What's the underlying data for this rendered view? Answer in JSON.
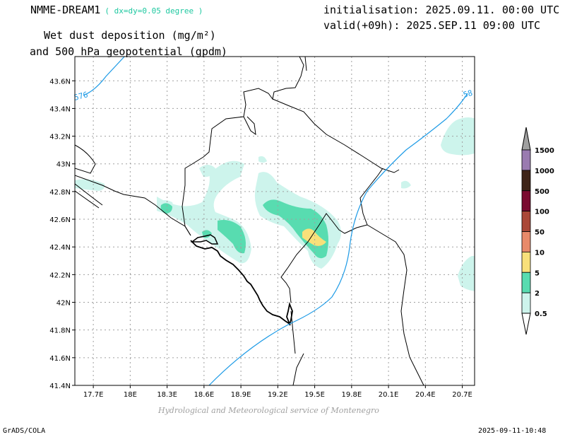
{
  "header": {
    "model": "NMME-DREAM1",
    "resolution": "( dx=dy=0.05 degree )",
    "initialisation": "initialisation: 2025.09.11. 00:00 UTC",
    "valid": "valid(+09h): 2025.SEP.11 09:00 UTC",
    "variable_line1": "Wet dust deposition (mg/m²)",
    "variable_line2": "and 500 hPa geopotential (gpdm)"
  },
  "map": {
    "lat_labels": [
      "43.6N",
      "43.4N",
      "43.2N",
      "43N",
      "42.8N",
      "42.6N",
      "42.4N",
      "42.2N",
      "42N",
      "41.8N",
      "41.6N",
      "41.4N"
    ],
    "lat_values": [
      43.6,
      43.4,
      43.2,
      43.0,
      42.8,
      42.6,
      42.4,
      42.2,
      42.0,
      41.8,
      41.6,
      41.4
    ],
    "lon_labels": [
      "17.7E",
      "18E",
      "18.3E",
      "18.6E",
      "18.9E",
      "19.2E",
      "19.5E",
      "19.8E",
      "20.1E",
      "20.4E",
      "20.7E"
    ],
    "lon_values": [
      17.7,
      18.0,
      18.3,
      18.6,
      18.9,
      19.2,
      19.5,
      19.8,
      20.1,
      20.4,
      20.7
    ],
    "contour_labels": [
      "576",
      "58"
    ],
    "contour_color": "#1e9be6",
    "border_color": "#000000",
    "grid_color": "#a0a0a0"
  },
  "colorbar": {
    "levels": [
      "1500",
      "1000",
      "500",
      "100",
      "50",
      "10",
      "5",
      "2",
      "0.5"
    ],
    "colors": [
      "#9a7bb0",
      "#3e2418",
      "#7a0a30",
      "#aa4838",
      "#e88a6a",
      "#f8e07a",
      "#58dcb0",
      "#cdf4ec"
    ],
    "cap_colors": {
      "top": "#a0a0a0",
      "bottom": "#ffffff"
    }
  },
  "footer": {
    "credit": "Hydrological and Meteorological service of Montenegro",
    "software": "GrADS/COLA",
    "timestamp": "2025-09-11-10:48"
  }
}
